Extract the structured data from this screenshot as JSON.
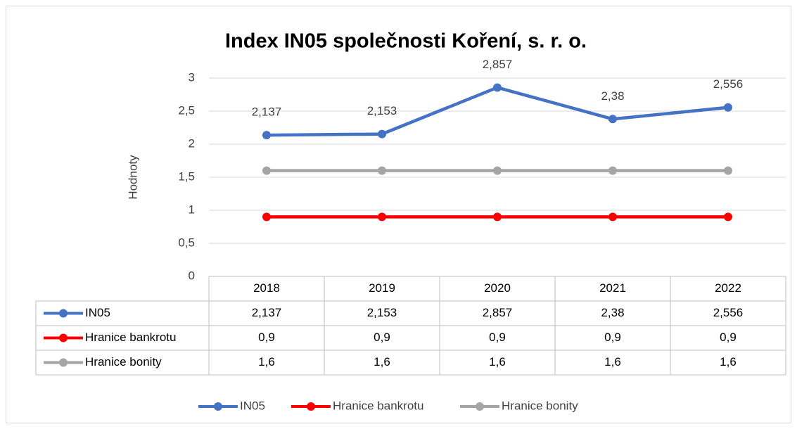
{
  "chart_data": {
    "type": "line",
    "title": "Index IN05 společnosti Koření, s. r. o.",
    "y_label": "Hodnoty",
    "categories": [
      "2018",
      "2019",
      "2020",
      "2021",
      "2022"
    ],
    "series": [
      {
        "name": "IN05",
        "color": "#4472c4",
        "values": [
          2.137,
          2.153,
          2.857,
          2.38,
          2.556
        ],
        "value_labels": [
          "2,137",
          "2,153",
          "2,857",
          "2,38",
          "2,556"
        ]
      },
      {
        "name": "Hranice bankrotu",
        "color": "#ff0000",
        "values": [
          0.9,
          0.9,
          0.9,
          0.9,
          0.9
        ],
        "value_labels": [
          "0,9",
          "0,9",
          "0,9",
          "0,9",
          "0,9"
        ]
      },
      {
        "name": "Hranice bonity",
        "color": "#a5a5a5",
        "values": [
          1.6,
          1.6,
          1.6,
          1.6,
          1.6
        ],
        "value_labels": [
          "1,6",
          "1,6",
          "1,6",
          "1,6",
          "1,6"
        ]
      }
    ],
    "ylim": [
      0,
      3
    ],
    "yticks": [
      0,
      {
        "value": 0.5,
        "label": "0,5"
      },
      1,
      {
        "value": 1.5,
        "label": "1,5"
      },
      2,
      {
        "value": 2.5,
        "label": "2,5"
      },
      3
    ],
    "grid": true,
    "legend": "bottom",
    "data_table": true
  }
}
